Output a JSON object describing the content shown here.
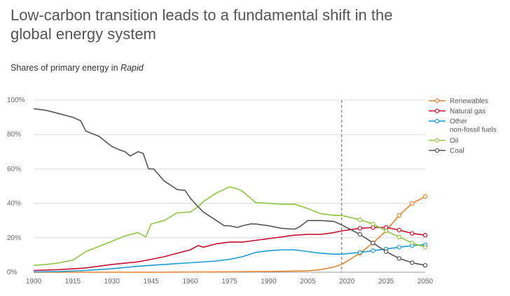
{
  "title": "Low-carbon transition leads to a fundamental shift in the global energy system",
  "subtitle_prefix": "Shares of primary energy in ",
  "subtitle_emph": "Rapid",
  "chart_data": {
    "type": "line",
    "xlim": [
      1900,
      2050
    ],
    "ylim": [
      0,
      100
    ],
    "xticks": [
      1900,
      1915,
      1930,
      1945,
      1960,
      1975,
      1990,
      2005,
      2020,
      2035,
      2050
    ],
    "xtick_labels": [
      "1900",
      "1915",
      "1930",
      "1945",
      "1960",
      "1975",
      "1990",
      "2005",
      "2020",
      "2035",
      "2050"
    ],
    "yticks": [
      0,
      20,
      40,
      60,
      80,
      100
    ],
    "ytick_labels": [
      "0%",
      "20%",
      "40%",
      "60%",
      "80%",
      "100%"
    ],
    "grid": "horizontal",
    "vertical_marker": 2018,
    "legend_position": "right",
    "series": [
      {
        "name": "Renewables",
        "color": "#e8822a",
        "markers_from": 2025,
        "points": [
          [
            1900,
            0
          ],
          [
            1950,
            0
          ],
          [
            1970,
            0.2
          ],
          [
            1990,
            0.4
          ],
          [
            2005,
            0.8
          ],
          [
            2010,
            1.5
          ],
          [
            2015,
            3
          ],
          [
            2018,
            4.5
          ],
          [
            2025,
            11
          ],
          [
            2030,
            17
          ],
          [
            2035,
            24
          ],
          [
            2040,
            33
          ],
          [
            2045,
            40
          ],
          [
            2050,
            44
          ]
        ]
      },
      {
        "name": "Natural gas",
        "color": "#c8102e",
        "markers_from": 2025,
        "points": [
          [
            1900,
            1
          ],
          [
            1910,
            1.5
          ],
          [
            1920,
            2.5
          ],
          [
            1930,
            4.5
          ],
          [
            1940,
            6
          ],
          [
            1945,
            7.5
          ],
          [
            1950,
            9
          ],
          [
            1955,
            11
          ],
          [
            1960,
            13
          ],
          [
            1963,
            15.5
          ],
          [
            1965,
            14.5
          ],
          [
            1970,
            16.5
          ],
          [
            1975,
            17.5
          ],
          [
            1980,
            17.5
          ],
          [
            1985,
            18.5
          ],
          [
            1990,
            19.5
          ],
          [
            1995,
            20.5
          ],
          [
            2000,
            21.5
          ],
          [
            2005,
            22
          ],
          [
            2010,
            22
          ],
          [
            2015,
            23
          ],
          [
            2018,
            24
          ],
          [
            2025,
            25.5
          ],
          [
            2030,
            26
          ],
          [
            2035,
            26
          ],
          [
            2040,
            24.5
          ],
          [
            2045,
            22.5
          ],
          [
            2050,
            21.5
          ]
        ]
      },
      {
        "name": "Other non-fossil fuels",
        "legend_lines": [
          "Other",
          "non-fossil fuels"
        ],
        "color": "#1a9bd7",
        "markers_from": 2025,
        "points": [
          [
            1900,
            0.2
          ],
          [
            1910,
            0.4
          ],
          [
            1920,
            1
          ],
          [
            1930,
            2
          ],
          [
            1940,
            3.5
          ],
          [
            1950,
            4.5
          ],
          [
            1960,
            5.5
          ],
          [
            1970,
            6.5
          ],
          [
            1975,
            7.5
          ],
          [
            1980,
            9
          ],
          [
            1985,
            11.5
          ],
          [
            1990,
            12.5
          ],
          [
            1995,
            13
          ],
          [
            2000,
            13
          ],
          [
            2005,
            12
          ],
          [
            2010,
            11
          ],
          [
            2015,
            10.5
          ],
          [
            2018,
            10.5
          ],
          [
            2025,
            11.5
          ],
          [
            2030,
            12.5
          ],
          [
            2035,
            13.5
          ],
          [
            2040,
            14.5
          ],
          [
            2045,
            15.5
          ],
          [
            2050,
            16
          ]
        ]
      },
      {
        "name": "Oil",
        "color": "#8dc63f",
        "markers_from": 2025,
        "points": [
          [
            1900,
            4
          ],
          [
            1905,
            4.5
          ],
          [
            1910,
            5.5
          ],
          [
            1915,
            7
          ],
          [
            1920,
            12
          ],
          [
            1925,
            15
          ],
          [
            1930,
            18
          ],
          [
            1935,
            21
          ],
          [
            1940,
            23
          ],
          [
            1943,
            20.5
          ],
          [
            1945,
            28
          ],
          [
            1950,
            30
          ],
          [
            1955,
            34.5
          ],
          [
            1960,
            35
          ],
          [
            1963,
            38
          ],
          [
            1965,
            41
          ],
          [
            1970,
            46
          ],
          [
            1975,
            49.5
          ],
          [
            1978,
            48.5
          ],
          [
            1980,
            47
          ],
          [
            1985,
            40.5
          ],
          [
            1990,
            40
          ],
          [
            1995,
            39.5
          ],
          [
            2000,
            39.5
          ],
          [
            2005,
            37
          ],
          [
            2010,
            34
          ],
          [
            2015,
            33
          ],
          [
            2018,
            33
          ],
          [
            2025,
            30.5
          ],
          [
            2030,
            28
          ],
          [
            2035,
            24
          ],
          [
            2040,
            20.5
          ],
          [
            2045,
            17
          ],
          [
            2050,
            14.5
          ]
        ]
      },
      {
        "name": "Coal",
        "color": "#555555",
        "markers_from": 2025,
        "points": [
          [
            1900,
            95
          ],
          [
            1905,
            94
          ],
          [
            1910,
            92
          ],
          [
            1915,
            90
          ],
          [
            1918,
            88
          ],
          [
            1920,
            82
          ],
          [
            1925,
            79
          ],
          [
            1930,
            73
          ],
          [
            1933,
            71
          ],
          [
            1935,
            70
          ],
          [
            1937,
            67.5
          ],
          [
            1940,
            70
          ],
          [
            1942,
            69
          ],
          [
            1944,
            60
          ],
          [
            1946,
            60
          ],
          [
            1950,
            53
          ],
          [
            1955,
            48
          ],
          [
            1958,
            47.5
          ],
          [
            1960,
            43
          ],
          [
            1963,
            38
          ],
          [
            1965,
            35
          ],
          [
            1970,
            30
          ],
          [
            1973,
            27
          ],
          [
            1975,
            27
          ],
          [
            1978,
            26
          ],
          [
            1980,
            27
          ],
          [
            1983,
            28
          ],
          [
            1985,
            28
          ],
          [
            1990,
            27
          ],
          [
            1995,
            25.5
          ],
          [
            2000,
            25
          ],
          [
            2002,
            26.5
          ],
          [
            2005,
            30
          ],
          [
            2010,
            30
          ],
          [
            2015,
            29.5
          ],
          [
            2018,
            27.5
          ],
          [
            2025,
            22
          ],
          [
            2030,
            17
          ],
          [
            2035,
            12
          ],
          [
            2040,
            8
          ],
          [
            2045,
            5.5
          ],
          [
            2050,
            4
          ]
        ]
      }
    ]
  }
}
